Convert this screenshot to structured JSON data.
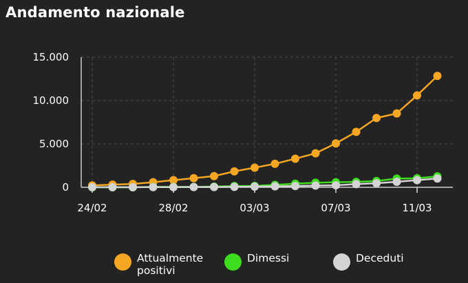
{
  "title": "Andamento nazionale",
  "chart_data": {
    "type": "line",
    "title": "Andamento nazionale",
    "xlabel": "",
    "ylabel": "",
    "x": [
      "24/02",
      "25/02",
      "26/02",
      "27/02",
      "28/02",
      "29/02",
      "01/03",
      "02/03",
      "03/03",
      "04/03",
      "05/03",
      "06/03",
      "07/03",
      "08/03",
      "09/03",
      "10/03",
      "11/03",
      "12/03"
    ],
    "x_tick_labels": [
      "24/02",
      "28/02",
      "03/03",
      "07/03",
      "11/03"
    ],
    "y_tick_labels": [
      "15.000",
      "10.000",
      "5.000",
      "0"
    ],
    "y_ticks": [
      0,
      5000,
      10000,
      15000
    ],
    "ylim": [
      0,
      15000
    ],
    "grid": true,
    "legend": "bottom",
    "series": [
      {
        "name": "Attualmente positivi",
        "color": "#f5a623",
        "values": [
          221,
          311,
          385,
          588,
          821,
          1049,
          1288,
          1835,
          2263,
          2706,
          3296,
          3916,
          5061,
          6387,
          7985,
          8514,
          10590,
          12839
        ]
      },
      {
        "name": "Dimessi",
        "color": "#3ddc1f",
        "values": [
          1,
          1,
          3,
          45,
          46,
          50,
          83,
          149,
          160,
          276,
          414,
          523,
          589,
          622,
          724,
          1004,
          1045,
          1258
        ]
      },
      {
        "name": "Deceduti",
        "color": "#d4d4d4",
        "values": [
          7,
          10,
          12,
          17,
          21,
          29,
          34,
          52,
          79,
          107,
          148,
          197,
          233,
          366,
          463,
          631,
          827,
          1016
        ]
      }
    ]
  }
}
